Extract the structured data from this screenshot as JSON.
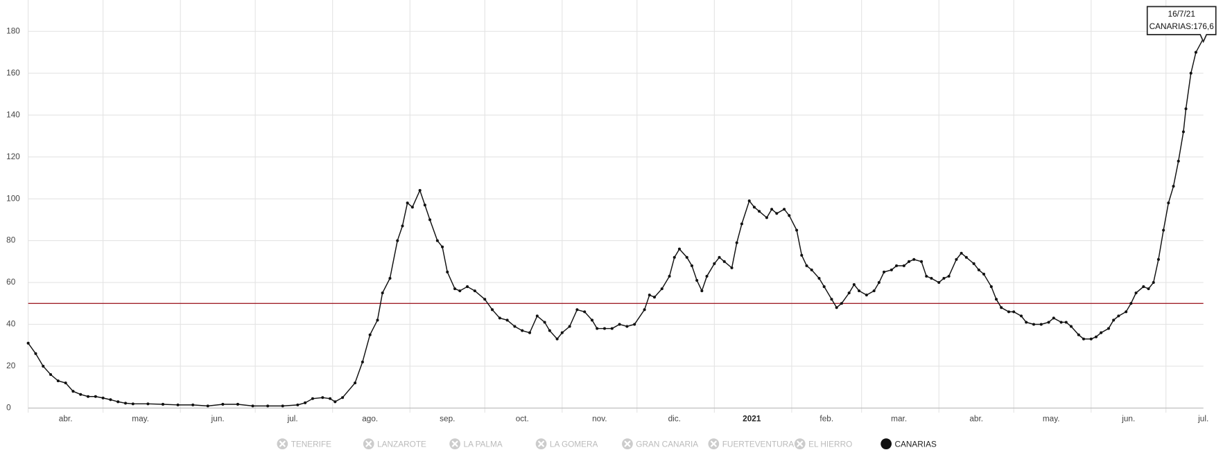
{
  "chart_data": {
    "type": "line",
    "x": [
      0,
      3,
      6,
      9,
      12,
      15,
      18,
      21,
      24,
      27,
      30,
      33,
      36,
      39,
      42,
      48,
      54,
      60,
      66,
      72,
      78,
      84,
      90,
      96,
      102,
      108,
      111,
      114,
      118,
      121,
      123,
      126,
      131,
      134,
      137,
      140,
      142,
      145,
      148,
      150,
      152,
      154,
      157,
      159,
      161,
      164,
      166,
      168,
      171,
      173,
      176,
      179,
      183,
      186,
      189,
      192,
      195,
      198,
      201,
      204,
      207,
      209,
      212,
      214,
      217,
      220,
      223,
      226,
      228,
      231,
      234,
      237,
      240,
      243,
      247,
      249,
      251,
      254,
      257,
      259,
      261,
      264,
      266,
      268,
      270,
      272,
      275,
      277,
      279,
      282,
      284,
      286,
      289,
      291,
      293,
      296,
      298,
      300,
      303,
      305,
      308,
      310,
      312,
      314,
      317,
      319,
      322,
      324,
      326,
      329,
      331,
      333,
      336,
      339,
      341,
      343,
      346,
      348,
      351,
      353,
      355,
      358,
      360,
      362,
      365,
      367,
      369,
      372,
      374,
      376,
      379,
      381,
      383,
      386,
      388,
      390,
      393,
      395,
      398,
      400,
      403,
      406,
      409,
      411,
      414,
      416,
      418,
      421,
      423,
      426,
      428,
      430,
      433,
      435,
      437,
      440,
      442,
      444,
      447,
      449,
      451,
      453,
      455,
      457,
      459,
      461,
      463,
      464,
      466,
      468,
      471
    ],
    "series": [
      {
        "name": "CANARIAS",
        "color": "#111111",
        "values": [
          31,
          26,
          20,
          16,
          13,
          12,
          8,
          6.5,
          5.5,
          5.5,
          4.8,
          4,
          3,
          2.3,
          2,
          2,
          1.8,
          1.5,
          1.5,
          1,
          1.8,
          1.8,
          1,
          1,
          1,
          1.5,
          2.5,
          4.5,
          5,
          4.5,
          3,
          5,
          12,
          22,
          35,
          42,
          55,
          62,
          80,
          87,
          98,
          96,
          104,
          97,
          90,
          80,
          77,
          65,
          57,
          56,
          58,
          56,
          52,
          47,
          43,
          42,
          39,
          37,
          36,
          44,
          41,
          37,
          33,
          36,
          39,
          47,
          46,
          42,
          38,
          38,
          38,
          40,
          39,
          40,
          47,
          54,
          53,
          57,
          63,
          72,
          76,
          72,
          68,
          61,
          56,
          63,
          69,
          72,
          70,
          67,
          79,
          88,
          99,
          96,
          94,
          91,
          95,
          93,
          95,
          92,
          85,
          73,
          68,
          66,
          62,
          58,
          52,
          48,
          50,
          55,
          59,
          56,
          54,
          56,
          60,
          65,
          66,
          68,
          68,
          70,
          71,
          70,
          63,
          62,
          60,
          62,
          63,
          71,
          74,
          72,
          69,
          66,
          64,
          58,
          52,
          48,
          46,
          46,
          44,
          41,
          40,
          40,
          41,
          43,
          41,
          41,
          39,
          35,
          33,
          33,
          34,
          36,
          38,
          42,
          44,
          46,
          50,
          55,
          58,
          57,
          60,
          71,
          85,
          98,
          106,
          118,
          132,
          143,
          160,
          170,
          176.6
        ]
      }
    ],
    "hidden_series": [
      "TENERIFE",
      "LANZAROTE",
      "LA PALMA",
      "LA GOMERA",
      "GRAN CANARIA",
      "FUERTEVENTURA",
      "EL HIERRO"
    ],
    "xlim": [
      0,
      471
    ],
    "xticks": [
      {
        "value": 15,
        "label": "abr."
      },
      {
        "value": 45,
        "label": "may."
      },
      {
        "value": 76,
        "label": "jun."
      },
      {
        "value": 106,
        "label": "jul."
      },
      {
        "value": 137,
        "label": "ago."
      },
      {
        "value": 168,
        "label": "sep."
      },
      {
        "value": 198,
        "label": "oct."
      },
      {
        "value": 229,
        "label": "nov."
      },
      {
        "value": 259,
        "label": "dic."
      },
      {
        "value": 290,
        "label": "2021",
        "bold": true
      },
      {
        "value": 320,
        "label": "feb."
      },
      {
        "value": 349,
        "label": "mar."
      },
      {
        "value": 380,
        "label": "abr."
      },
      {
        "value": 410,
        "label": "may."
      },
      {
        "value": 441,
        "label": "jun."
      },
      {
        "value": 471,
        "label": "jul."
      }
    ],
    "xgrid": [
      0,
      30,
      61,
      91,
      122,
      153,
      183,
      214,
      244,
      275,
      306,
      334,
      365,
      395,
      426,
      456
    ],
    "ylim": [
      0,
      195
    ],
    "yticks": [
      0,
      20,
      40,
      60,
      80,
      100,
      120,
      140,
      160,
      180
    ],
    "grid": true,
    "reference_line": 50,
    "reference_color": "#a0202a",
    "tooltip": {
      "date": "16/7/21",
      "text": "CANARIAS:176,6"
    }
  }
}
